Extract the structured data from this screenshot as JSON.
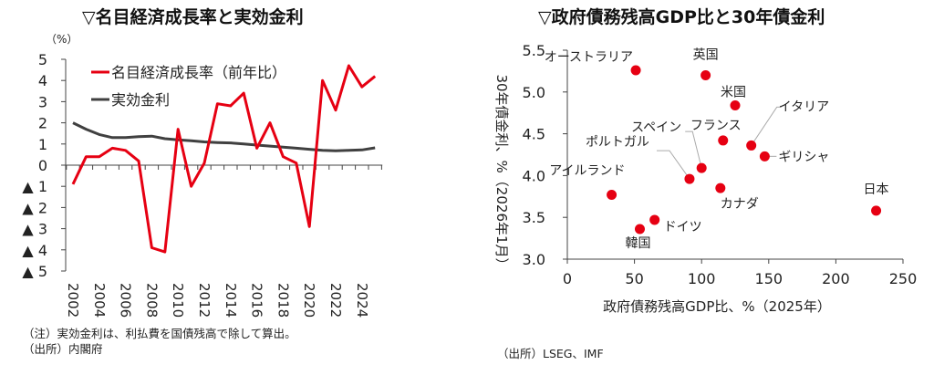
{
  "charts_page": {
    "left_title": "▽名目経済成長率と実効金利",
    "right_title": "▽政府債務残高GDP比と30年債金利",
    "left_note": "（注）実効金利は、利払費を国債残高で除して算出。",
    "left_source": "（出所）内閣府",
    "right_source": "（出所）LSEG、IMF"
  },
  "chart_data": [
    {
      "type": "line",
      "title": "▽名目経済成長率と実効金利",
      "ylabel": "（%）",
      "ylim": [
        -5,
        5
      ],
      "yticks": [
        5,
        4,
        3,
        2,
        1,
        0,
        -1,
        -2,
        -3,
        -4,
        -5
      ],
      "ytick_labels": [
        "5",
        "4",
        "3",
        "2",
        "1",
        "0",
        "▲ 1",
        "▲ 2",
        "▲ 3",
        "▲ 4",
        "▲ 5"
      ],
      "x": [
        2002,
        2003,
        2004,
        2005,
        2006,
        2007,
        2008,
        2009,
        2010,
        2011,
        2012,
        2013,
        2014,
        2015,
        2016,
        2017,
        2018,
        2019,
        2020,
        2021,
        2022,
        2023,
        2024,
        2025
      ],
      "xtick_labels": [
        "2002",
        "2004",
        "2006",
        "2008",
        "2010",
        "2012",
        "2014",
        "2016",
        "2018",
        "2020",
        "2022",
        "2024"
      ],
      "legend_position": "top-left",
      "series": [
        {
          "name": "名目経済成長率（前年比）",
          "color": "#e60012",
          "values": [
            -0.9,
            0.4,
            0.4,
            0.8,
            0.7,
            0.2,
            -3.9,
            -4.1,
            1.7,
            -1.0,
            0.1,
            2.9,
            2.8,
            3.4,
            0.8,
            2.0,
            0.4,
            0.1,
            -2.9,
            4.0,
            2.6,
            4.7,
            3.7,
            4.2
          ]
        },
        {
          "name": "実効金利",
          "color": "#404040",
          "values": [
            2.0,
            1.7,
            1.45,
            1.3,
            1.3,
            1.35,
            1.37,
            1.25,
            1.2,
            1.15,
            1.1,
            1.07,
            1.05,
            1.0,
            0.95,
            0.9,
            0.85,
            0.8,
            0.75,
            0.7,
            0.68,
            0.7,
            0.72,
            0.82
          ]
        }
      ]
    },
    {
      "type": "scatter",
      "title": "▽政府債務残高GDP比と30年債金利",
      "xlabel": "政府債務残高GDP比、%（2025年）",
      "ylabel": "30年債金利、%（2026年1月）",
      "xlim": [
        0,
        250
      ],
      "ylim": [
        3.0,
        5.5
      ],
      "xticks": [
        0,
        50,
        100,
        150,
        200,
        250
      ],
      "yticks": [
        "3.0",
        "3.5",
        "4.0",
        "4.5",
        "5.0",
        "5.5"
      ],
      "color": "#e60012",
      "points": [
        {
          "label": "オーストラリア",
          "x": 51,
          "y": 5.26
        },
        {
          "label": "英国",
          "x": 103,
          "y": 5.2
        },
        {
          "label": "米国",
          "x": 125,
          "y": 4.84
        },
        {
          "label": "フランス",
          "x": 116,
          "y": 4.42
        },
        {
          "label": "イタリア",
          "x": 137,
          "y": 4.36
        },
        {
          "label": "ギリシャ",
          "x": 147,
          "y": 4.23
        },
        {
          "label": "スペイン",
          "x": 100,
          "y": 4.09
        },
        {
          "label": "ポルトガル",
          "x": 91,
          "y": 3.96
        },
        {
          "label": "カナダ",
          "x": 114,
          "y": 3.85
        },
        {
          "label": "アイルランド",
          "x": 33,
          "y": 3.77
        },
        {
          "label": "ドイツ",
          "x": 65,
          "y": 3.47
        },
        {
          "label": "韓国",
          "x": 54,
          "y": 3.36
        },
        {
          "label": "日本",
          "x": 230,
          "y": 3.58
        }
      ]
    }
  ]
}
